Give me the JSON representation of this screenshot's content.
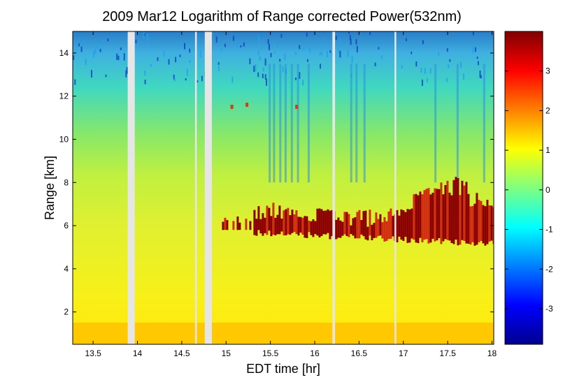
{
  "chart_data": {
    "type": "heatmap",
    "title": "2009 Mar12  Logarithm of Range corrected Power(532nm)",
    "xlabel": "EDT time [hr]",
    "ylabel": "Range [km]",
    "xlim": [
      13.27,
      18.02
    ],
    "ylim": [
      0.5,
      15
    ],
    "xticks": [
      "13.5",
      "14",
      "14.5",
      "15",
      "15.5",
      "16",
      "16.5",
      "17",
      "17.5",
      "18"
    ],
    "yticks": [
      "2",
      "4",
      "6",
      "8",
      "10",
      "12",
      "14"
    ],
    "colorbar": {
      "range": [
        -3.9,
        4
      ],
      "ticks": [
        "3",
        "2",
        "1",
        "0",
        "-1",
        "-2",
        "-3"
      ],
      "colormap": "jet"
    },
    "data_gaps_hr": [
      [
        13.89,
        13.97
      ],
      [
        14.65,
        14.67
      ],
      [
        14.76,
        14.84
      ],
      [
        16.2,
        16.23
      ],
      [
        16.9,
        16.92
      ]
    ],
    "cloud_layer": {
      "x_start_hr": 14.93,
      "x_end_hr": 18.02,
      "range_km": [
        5.2,
        7.6
      ],
      "log_power": 4
    },
    "boundary_layer_top_km": 1.7
  }
}
